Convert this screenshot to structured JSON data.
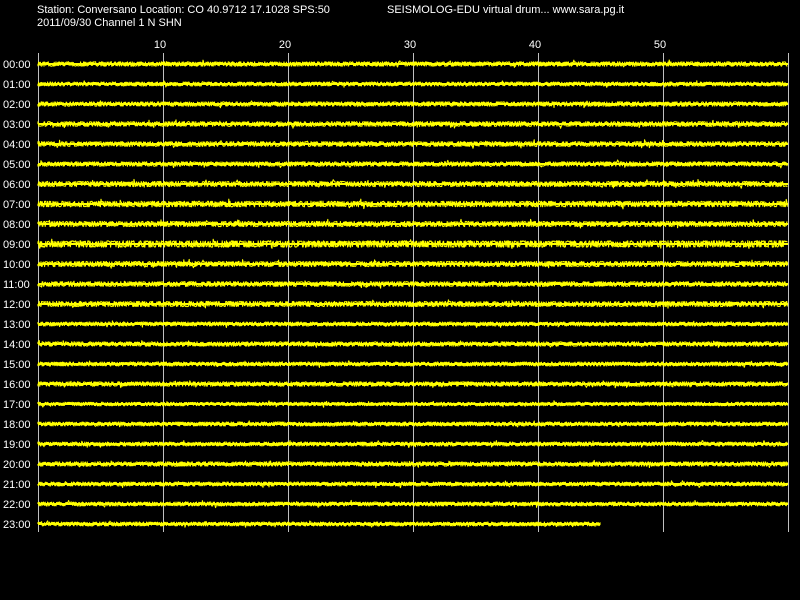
{
  "header": {
    "station_line": "Station: Conversano Location: CO 40.9712 17.1028 SPS:50",
    "title": "SEISMOLOG-EDU virtual drum... www.sara.pg.it",
    "date_line": "2011/09/30  Channel 1 N SHN"
  },
  "chart_data": {
    "type": "line",
    "title": "SEISMOLOG-EDU virtual drum... www.sara.pg.it",
    "xlabel": "",
    "ylabel": "",
    "xlim": [
      0,
      60
    ],
    "x_ticks": [
      10,
      20,
      30,
      40,
      50
    ],
    "x_tick_labels": [
      "10",
      "20",
      "30",
      "40",
      "50"
    ],
    "grid": true,
    "trace_color": "#ffff00",
    "background_color": "#000000",
    "grid_color": "#c0c0c0",
    "rows": [
      {
        "label": "00:00",
        "end_minute": 60,
        "amplitude": 2.2
      },
      {
        "label": "01:00",
        "end_minute": 60,
        "amplitude": 2.0
      },
      {
        "label": "02:00",
        "end_minute": 60,
        "amplitude": 2.2
      },
      {
        "label": "03:00",
        "end_minute": 60,
        "amplitude": 2.4
      },
      {
        "label": "04:00",
        "end_minute": 60,
        "amplitude": 2.4
      },
      {
        "label": "05:00",
        "end_minute": 60,
        "amplitude": 2.2
      },
      {
        "label": "06:00",
        "end_minute": 60,
        "amplitude": 2.6
      },
      {
        "label": "07:00",
        "end_minute": 60,
        "amplitude": 2.8
      },
      {
        "label": "08:00",
        "end_minute": 60,
        "amplitude": 2.6
      },
      {
        "label": "09:00",
        "end_minute": 60,
        "amplitude": 3.2
      },
      {
        "label": "10:00",
        "end_minute": 60,
        "amplitude": 2.6
      },
      {
        "label": "11:00",
        "end_minute": 60,
        "amplitude": 2.4
      },
      {
        "label": "12:00",
        "end_minute": 60,
        "amplitude": 2.6
      },
      {
        "label": "13:00",
        "end_minute": 60,
        "amplitude": 2.0
      },
      {
        "label": "14:00",
        "end_minute": 60,
        "amplitude": 2.2
      },
      {
        "label": "15:00",
        "end_minute": 60,
        "amplitude": 2.0
      },
      {
        "label": "16:00",
        "end_minute": 60,
        "amplitude": 2.2
      },
      {
        "label": "17:00",
        "end_minute": 60,
        "amplitude": 1.8
      },
      {
        "label": "18:00",
        "end_minute": 60,
        "amplitude": 2.0
      },
      {
        "label": "19:00",
        "end_minute": 60,
        "amplitude": 2.0
      },
      {
        "label": "20:00",
        "end_minute": 60,
        "amplitude": 2.2
      },
      {
        "label": "21:00",
        "end_minute": 60,
        "amplitude": 2.0
      },
      {
        "label": "22:00",
        "end_minute": 60,
        "amplitude": 2.0
      },
      {
        "label": "23:00",
        "end_minute": 45,
        "amplitude": 2.0
      }
    ]
  }
}
